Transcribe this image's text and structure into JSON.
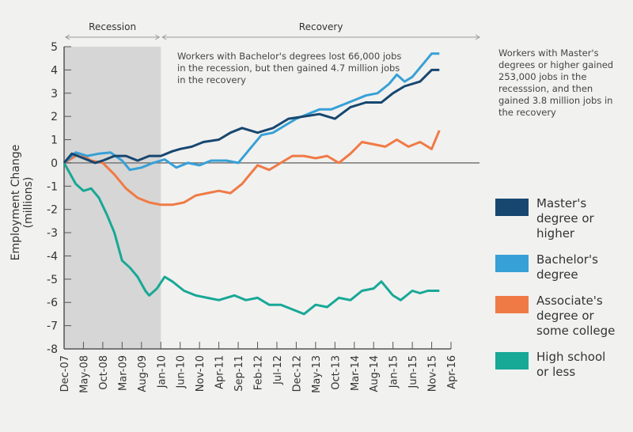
{
  "chart_data": {
    "type": "line",
    "title": "",
    "xlabel": "",
    "ylabel": "Employment Change (millions)",
    "ylim": [
      -8,
      5
    ],
    "yticks": [
      "5",
      "4",
      "3",
      "2",
      "1",
      "0",
      "-1",
      "-2",
      "-3",
      "-4",
      "-5",
      "-6",
      "-7",
      "-8"
    ],
    "x_unit": "months since Dec-07",
    "xticks": [
      "Dec-07",
      "May-08",
      "Oct-08",
      "Mar-09",
      "Aug-09",
      "Jan-10",
      "Jun-10",
      "Nov-10",
      "Apr-11",
      "Sep-11",
      "Feb-12",
      "Jul-12",
      "Dec-12",
      "May-13",
      "Oct-13",
      "Mar-14",
      "Aug-14",
      "Jan-15",
      "Jun-15",
      "Nov-15",
      "Apr-16"
    ],
    "periods": [
      {
        "label": "Recession",
        "start": 0,
        "end": 25
      },
      {
        "label": "Recovery",
        "start": 25,
        "end": 100
      }
    ],
    "annotations": [
      "Workers with Bachelor's degrees lost 66,000 jobs in the recession, but then gained 4.7 million jobs in the recovery",
      "Workers with Master's degrees or higher gained 253,000 jobs in the recesssion, and then gained 3.8 million jobs in the recovery"
    ],
    "series": [
      {
        "name": "Master's degree or higher",
        "color": "#17476f",
        "x": [
          0,
          2,
          5,
          8,
          10,
          13,
          16,
          19,
          22,
          25,
          28,
          30,
          33,
          36,
          40,
          43,
          46,
          50,
          54,
          58,
          62,
          66,
          70,
          74,
          78,
          82,
          85,
          88,
          92,
          95,
          97
        ],
        "y": [
          0,
          0.4,
          0.2,
          0,
          0.1,
          0.3,
          0.3,
          0.1,
          0.3,
          0.3,
          0.5,
          0.6,
          0.7,
          0.9,
          1.0,
          1.3,
          1.5,
          1.3,
          1.5,
          1.9,
          2.0,
          2.1,
          1.9,
          2.4,
          2.6,
          2.6,
          3.0,
          3.3,
          3.5,
          4.0,
          4.0
        ]
      },
      {
        "name": "Bachelor's degree",
        "color": "#37a0d6",
        "x": [
          0,
          3,
          6,
          9,
          12,
          15,
          17,
          20,
          23,
          26,
          29,
          32,
          35,
          38,
          42,
          45,
          48,
          51,
          54,
          57,
          60,
          63,
          66,
          69,
          72,
          75,
          78,
          81,
          84,
          86,
          88,
          90,
          93,
          95,
          97
        ],
        "y": [
          0,
          0.45,
          0.3,
          0.4,
          0.45,
          0.1,
          -0.3,
          -0.2,
          0,
          0.15,
          -0.2,
          0,
          -0.1,
          0.1,
          0.1,
          0,
          0.6,
          1.2,
          1.3,
          1.6,
          1.9,
          2.1,
          2.3,
          2.3,
          2.5,
          2.7,
          2.9,
          3.0,
          3.4,
          3.8,
          3.5,
          3.7,
          4.3,
          4.7,
          4.7
        ]
      },
      {
        "name": "Associate's degree or some college",
        "color": "#f07a45",
        "x": [
          0,
          4,
          7,
          10,
          13,
          16,
          19,
          22,
          25,
          28,
          31,
          34,
          37,
          40,
          43,
          46,
          48,
          50,
          53,
          56,
          59,
          62,
          65,
          68,
          71,
          74,
          77,
          80,
          83,
          86,
          89,
          92,
          95,
          97
        ],
        "y": [
          0,
          0.4,
          0.1,
          0,
          -0.5,
          -1.1,
          -1.5,
          -1.7,
          -1.8,
          -1.8,
          -1.7,
          -1.4,
          -1.3,
          -1.2,
          -1.3,
          -0.9,
          -0.5,
          -0.1,
          -0.3,
          0,
          0.3,
          0.3,
          0.2,
          0.3,
          0,
          0.4,
          0.9,
          0.8,
          0.7,
          1.0,
          0.7,
          0.9,
          0.6,
          1.4
        ]
      },
      {
        "name": "High school or less",
        "color": "#18a896",
        "x": [
          0,
          3,
          5,
          7,
          9,
          11,
          13,
          15,
          17,
          19,
          21,
          22,
          24,
          26,
          28,
          31,
          34,
          37,
          40,
          44,
          47,
          50,
          53,
          56,
          59,
          62,
          65,
          68,
          71,
          74,
          77,
          80,
          82,
          85,
          87,
          90,
          92,
          94,
          97
        ],
        "y": [
          0,
          -0.9,
          -1.2,
          -1.1,
          -1.5,
          -2.2,
          -3.0,
          -4.2,
          -4.5,
          -4.9,
          -5.5,
          -5.7,
          -5.4,
          -4.9,
          -5.1,
          -5.5,
          -5.7,
          -5.8,
          -5.9,
          -5.7,
          -5.9,
          -5.8,
          -6.1,
          -6.1,
          -6.3,
          -6.5,
          -6.1,
          -6.2,
          -5.8,
          -5.9,
          -5.5,
          -5.4,
          -5.1,
          -5.7,
          -5.9,
          -5.5,
          -5.6,
          -5.5,
          -5.5
        ]
      }
    ],
    "legend": {
      "placement": "right",
      "lines": [
        [
          "Master's",
          "degree or",
          "higher"
        ],
        [
          "Bachelor's",
          "degree"
        ],
        [
          "Associate's",
          "degree or",
          "some college"
        ],
        [
          "High school",
          "or less"
        ]
      ]
    }
  }
}
